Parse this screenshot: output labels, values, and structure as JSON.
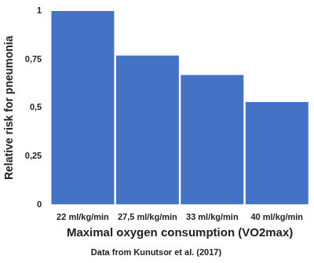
{
  "chart_data": {
    "type": "bar",
    "subtitle": "Data from Kunutsor et al. (2017)",
    "x_label": "Maximal oxygen consumption (VO2max)",
    "y_label": "Relative risk for pneumonia",
    "categories": [
      "22 ml/kg/min",
      "27,5 ml/kg/min",
      "33 ml/kg/min",
      "40 ml/kg/min"
    ],
    "values": [
      1,
      0.77,
      0.67,
      0.53
    ],
    "color": "#4472c4",
    "ylim": [
      0,
      1
    ],
    "yticks": [
      0,
      {
        "value": 0.25,
        "label": "0,25"
      },
      {
        "value": 0.5,
        "label": "0,5"
      },
      {
        "value": 0.75,
        "label": "0,75"
      },
      1
    ],
    "grid": false
  }
}
